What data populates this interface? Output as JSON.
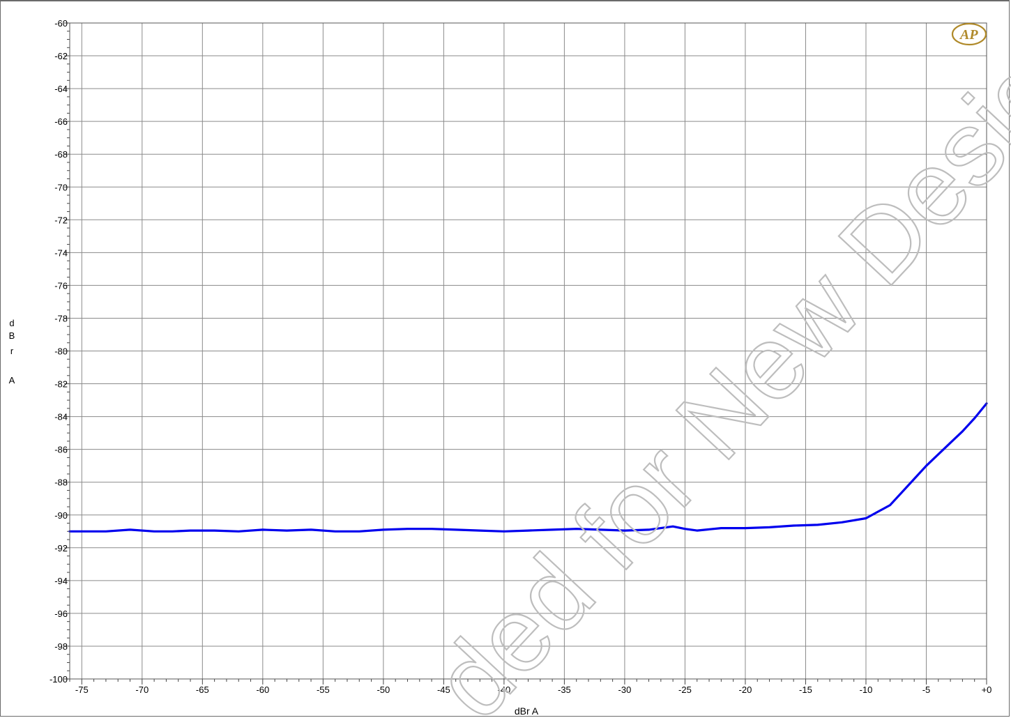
{
  "chart_data": {
    "type": "line",
    "title": "",
    "xlabel": "dBr A",
    "ylabel": "dBr A",
    "xlim": [
      -76,
      0
    ],
    "ylim": [
      -100,
      -60
    ],
    "x_ticks": [
      -75,
      -70,
      -65,
      -60,
      -55,
      -50,
      -45,
      -40,
      -35,
      -30,
      -25,
      -20,
      -15,
      -10,
      -5,
      0
    ],
    "x_tick_labels": [
      "-75",
      "-70",
      "-65",
      "-60",
      "-55",
      "-50",
      "-45",
      "-40",
      "-35",
      "-30",
      "-25",
      "-20",
      "-15",
      "-10",
      "-5",
      "+0"
    ],
    "y_ticks": [
      -60,
      -62,
      -64,
      -66,
      -68,
      -70,
      -72,
      -74,
      -76,
      -78,
      -80,
      -82,
      -84,
      -86,
      -88,
      -90,
      -92,
      -94,
      -96,
      -98,
      -100
    ],
    "y_tick_labels": [
      "-60",
      "-62",
      "-64",
      "-66",
      "-68",
      "-70",
      "-72",
      "-74",
      "-76",
      "-78",
      "-80",
      "-82",
      "-84",
      "-86",
      "-88",
      "-90",
      "-92",
      "-94",
      "-96",
      "-98",
      "-100"
    ],
    "grid": true,
    "series": [
      {
        "name": "",
        "color": "#0000ee",
        "x": [
          -76,
          -73,
          -71,
          -69,
          -67.5,
          -66,
          -64,
          -62,
          -60,
          -58,
          -56,
          -54,
          -52,
          -50,
          -48,
          -46,
          -44,
          -42,
          -40,
          -38,
          -36,
          -34,
          -32,
          -30,
          -28,
          -26,
          -25,
          -24,
          -22,
          -20,
          -18,
          -16,
          -14,
          -12,
          -10,
          -9,
          -8,
          -7,
          -6,
          -5,
          -4,
          -3,
          -2,
          -1,
          0
        ],
        "y": [
          -91.0,
          -91.0,
          -90.9,
          -91.0,
          -91.0,
          -90.95,
          -90.95,
          -91.0,
          -90.9,
          -90.95,
          -90.9,
          -91.0,
          -91.0,
          -90.9,
          -90.85,
          -90.85,
          -90.9,
          -90.95,
          -91.0,
          -90.95,
          -90.9,
          -90.85,
          -90.9,
          -90.95,
          -90.9,
          -90.7,
          -90.85,
          -90.95,
          -90.8,
          -90.8,
          -90.75,
          -90.65,
          -90.6,
          -90.45,
          -90.2,
          -89.8,
          -89.4,
          -88.6,
          -87.8,
          -87.0,
          -86.3,
          -85.6,
          -84.9,
          -84.1,
          -83.2
        ]
      }
    ]
  },
  "axis_label_y_letters": [
    "d",
    "B",
    "r",
    "A"
  ],
  "logo_text": "AP",
  "watermark_text": "ded for New Designs",
  "colors": {
    "grid": "#8a8a8a",
    "line": "#0000ee",
    "logo": "#b08a2a",
    "watermark": "#c8c8c8"
  }
}
